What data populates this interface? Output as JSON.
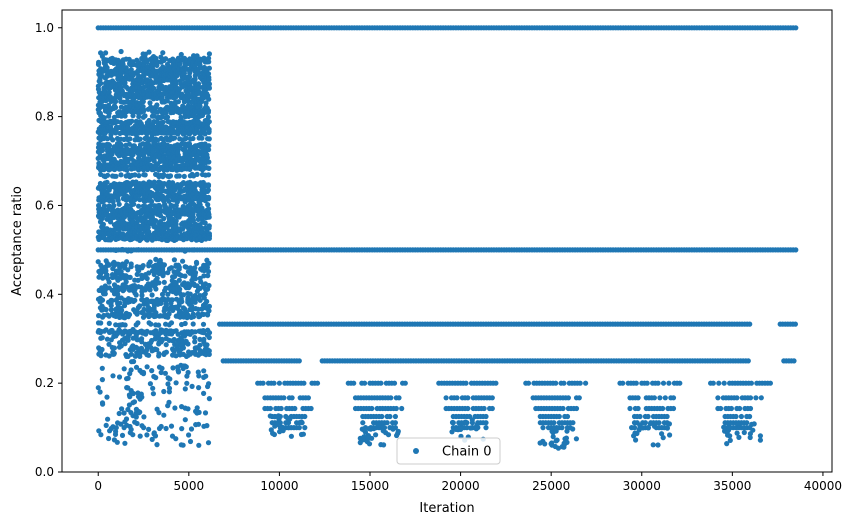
{
  "chart_data": {
    "type": "scatter",
    "xlabel": "Iteration",
    "ylabel": "Acceptance ratio",
    "xlim": [
      -2000,
      40500
    ],
    "ylim": [
      0.0,
      1.04
    ],
    "xticks": [
      0,
      5000,
      10000,
      15000,
      20000,
      25000,
      30000,
      35000,
      40000
    ],
    "xtick_labels": [
      "0",
      "5000",
      "10000",
      "15000",
      "20000",
      "25000",
      "30000",
      "35000",
      "40000"
    ],
    "yticks": [
      0.0,
      0.2,
      0.4,
      0.6,
      0.8,
      1.0
    ],
    "ytick_labels": [
      "0.0",
      "0.2",
      "0.4",
      "0.6",
      "0.8",
      "1.0"
    ],
    "grid": false,
    "legend": {
      "position": "lower-center",
      "entries": [
        "Chain 0"
      ]
    },
    "series_color": "#1f77b4",
    "series": [
      {
        "name": "Chain 0",
        "bands": [
          {
            "y": 1.0,
            "x_start": 0,
            "x_end": 38500
          },
          {
            "y": 0.5,
            "x_start": 0,
            "x_end": 38500
          },
          {
            "y": 0.333,
            "x_start": 6700,
            "x_end": 38500,
            "gaps": [
              [
                36000,
                37600
              ]
            ]
          },
          {
            "y": 0.25,
            "x_start": 6900,
            "x_end": 38500,
            "gaps": [
              [
                11200,
                12300
              ],
              [
                36000,
                37700
              ]
            ]
          },
          {
            "y": 0.2,
            "x_start": 7200,
            "x_end": 38400,
            "sparse": true
          },
          {
            "y": 0.167,
            "x_start": 7500,
            "x_end": 38500,
            "sparse": true
          },
          {
            "y": 0.143,
            "x_start": 8000,
            "x_end": 36000,
            "sparse": true
          },
          {
            "y": 0.125,
            "x_start": 9000,
            "x_end": 36000,
            "sparse": true
          },
          {
            "y": 0.111,
            "x_start": 9500,
            "x_end": 36000,
            "sparse": true
          },
          {
            "y": 0.1,
            "x_start": 10000,
            "x_end": 36000,
            "sparse": true
          }
        ],
        "early_phase": {
          "x_start": 0,
          "x_end": 6100,
          "y_min": 0.06,
          "y_max": 0.945,
          "dense_y_range": [
            0.52,
            0.93
          ],
          "dense_lower_y_range": [
            0.26,
            0.47
          ]
        },
        "dips": [
          {
            "x": 10500,
            "y_min": 0.08
          },
          {
            "x": 15500,
            "y_min": 0.06
          },
          {
            "x": 20500,
            "y_min": 0.07
          },
          {
            "x": 25300,
            "y_min": 0.05
          },
          {
            "x": 30500,
            "y_min": 0.06
          },
          {
            "x": 35500,
            "y_min": 0.06
          }
        ]
      }
    ]
  }
}
